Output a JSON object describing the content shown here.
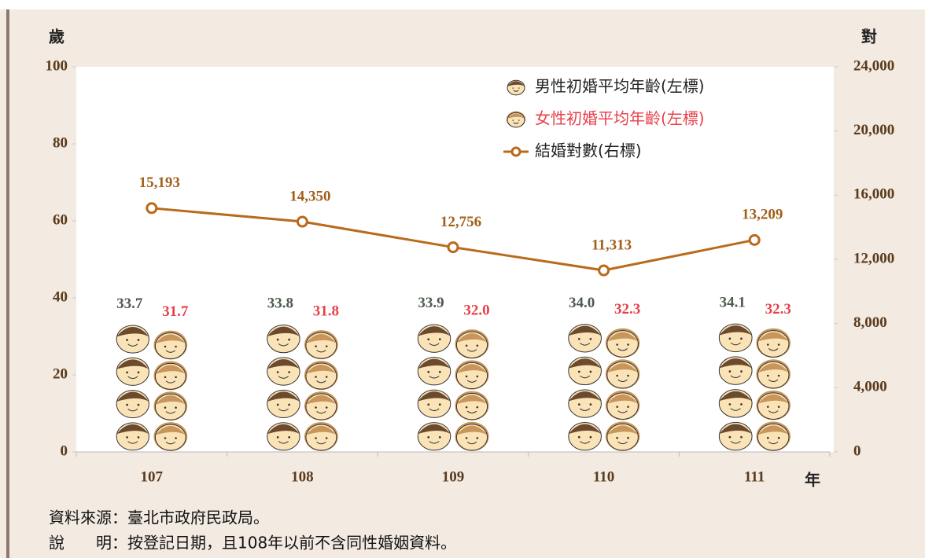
{
  "chart_data": {
    "type": "combo",
    "y_label": "歲",
    "y2_label": "對",
    "x_label": "年",
    "categories": [
      "107",
      "108",
      "109",
      "110",
      "111"
    ],
    "ylim": [
      0,
      100
    ],
    "yticks": [
      0,
      20,
      40,
      60,
      80,
      100
    ],
    "y2lim": [
      0,
      24000
    ],
    "y2ticks": [
      0,
      {
        "value": 4000,
        "label": "4,000"
      },
      {
        "value": 8000,
        "label": "8,000"
      },
      {
        "value": 12000,
        "label": "12,000"
      },
      {
        "value": 16000,
        "label": "16,000"
      },
      {
        "value": 20000,
        "label": "20,000"
      },
      {
        "value": 24000,
        "label": "24,000"
      }
    ],
    "series": [
      {
        "name": "男性初婚平均年齡(左標)",
        "type": "pictograph",
        "icon": "male",
        "color": "#4d5a4d",
        "values": [
          33.7,
          33.8,
          33.9,
          34.0,
          34.1
        ],
        "value_labels": [
          "33.7",
          "33.8",
          "33.9",
          "34.0",
          "34.1"
        ]
      },
      {
        "name": "女性初婚平均年齡(左標)",
        "type": "pictograph",
        "icon": "female",
        "color": "#e8404a",
        "values": [
          31.7,
          31.8,
          32.0,
          32.3,
          32.3
        ],
        "value_labels": [
          "31.7",
          "31.8",
          "32.0",
          "32.3",
          "32.3"
        ]
      },
      {
        "name": "結婚對數(右標)",
        "type": "line",
        "axis": "y2",
        "color": "#b96a1c",
        "values": [
          15193,
          14350,
          12756,
          11313,
          13209
        ],
        "value_labels": [
          "15,193",
          "14,350",
          "12,756",
          "11,313",
          "13,209"
        ]
      }
    ],
    "notes": [
      "資料來源：臺北市政府民政局。",
      "說　　明：按登記日期，且108年以前不含同性婚姻資料。"
    ]
  }
}
